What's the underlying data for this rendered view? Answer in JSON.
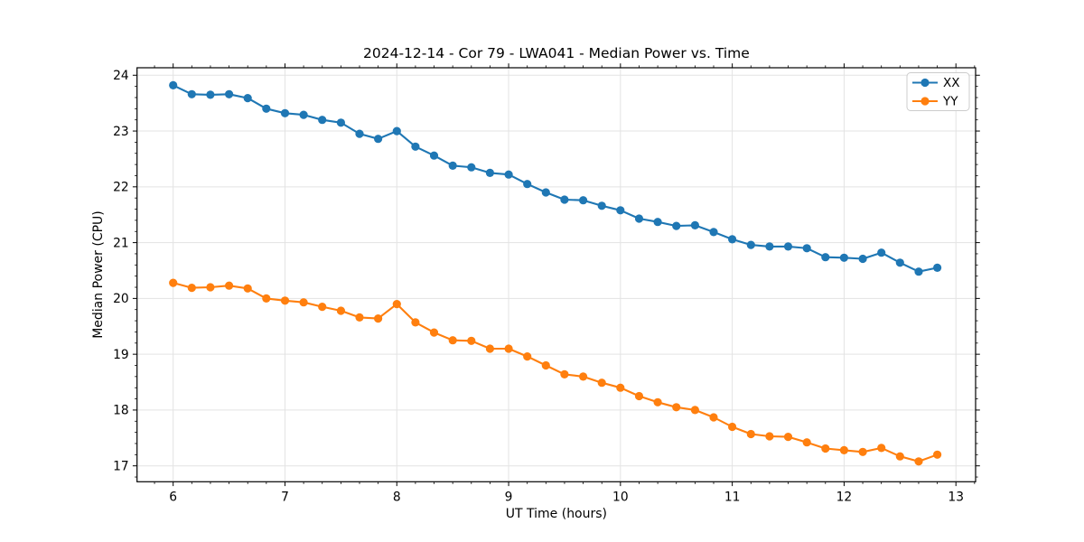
{
  "title": "2024-12-14 - Cor 79 - LWA041 - Median Power vs. Time",
  "chart_data": {
    "type": "line",
    "title": "2024-12-14 - Cor 79 - LWA041 - Median Power vs. Time",
    "xlabel": "UT Time (hours)",
    "ylabel": "Median Power (CPU)",
    "xlim": [
      5.677,
      13.176
    ],
    "ylim": [
      16.715,
      24.134
    ],
    "x_major_ticks": [
      6,
      7,
      8,
      9,
      10,
      11,
      12,
      13
    ],
    "y_major_ticks": [
      17,
      18,
      19,
      20,
      21,
      22,
      23,
      24
    ],
    "x_minor_step": 0.166667,
    "y_minor_step": 0.2,
    "grid": true,
    "grid_color": "#e3e3e3",
    "legend_position": "upper right",
    "marker": "circle",
    "x": [
      6.0,
      6.1667,
      6.3333,
      6.5,
      6.6667,
      6.8333,
      7.0,
      7.1667,
      7.3333,
      7.5,
      7.6667,
      7.8333,
      8.0,
      8.1667,
      8.3333,
      8.5,
      8.6667,
      8.8333,
      9.0,
      9.1667,
      9.3333,
      9.5,
      9.6667,
      9.8333,
      10.0,
      10.1667,
      10.3333,
      10.5,
      10.6667,
      10.8333,
      11.0,
      11.1667,
      11.3333,
      11.5,
      11.6667,
      11.8333,
      12.0,
      12.1667,
      12.3333,
      12.5,
      12.6667,
      12.8333
    ],
    "series": [
      {
        "name": "XX",
        "color": "#1f77b4",
        "values": [
          23.82,
          23.66,
          23.65,
          23.66,
          23.59,
          23.4,
          23.32,
          23.29,
          23.2,
          23.15,
          22.95,
          22.86,
          23.0,
          22.72,
          22.56,
          22.38,
          22.35,
          22.25,
          22.22,
          22.05,
          21.9,
          21.77,
          21.76,
          21.66,
          21.58,
          21.43,
          21.37,
          21.3,
          21.31,
          21.19,
          21.06,
          20.96,
          20.93,
          20.93,
          20.9,
          20.74,
          20.73,
          20.71,
          20.82,
          20.64,
          20.48,
          20.55
        ]
      },
      {
        "name": "YY",
        "color": "#ff7f0e",
        "values": [
          20.28,
          20.19,
          20.2,
          20.23,
          20.18,
          20.0,
          19.96,
          19.93,
          19.85,
          19.78,
          19.66,
          19.64,
          19.9,
          19.57,
          19.39,
          19.25,
          19.24,
          19.1,
          19.1,
          18.96,
          18.8,
          18.64,
          18.6,
          18.49,
          18.4,
          18.25,
          18.14,
          18.05,
          18.0,
          17.87,
          17.7,
          17.57,
          17.53,
          17.52,
          17.42,
          17.31,
          17.28,
          17.25,
          17.32,
          17.17,
          17.08,
          17.2
        ]
      }
    ]
  }
}
